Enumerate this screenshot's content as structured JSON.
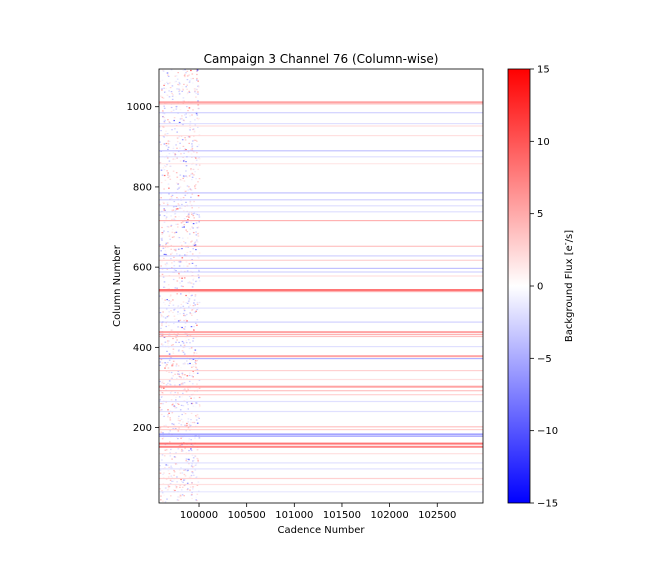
{
  "chart_data": {
    "type": "heatmap",
    "title": "Campaign 3 Channel 76 (Column-wise)",
    "xlabel": "Cadence Number",
    "ylabel": "Column Number",
    "xlim": [
      99580,
      102980
    ],
    "ylim": [
      12,
      1094
    ],
    "xticks": [
      {
        "value": 100000,
        "label": "100000"
      },
      {
        "value": 100500,
        "label": "100500"
      },
      {
        "value": 101000,
        "label": "101000"
      },
      {
        "value": 101500,
        "label": "101500"
      },
      {
        "value": 102000,
        "label": "102000"
      },
      {
        "value": 102500,
        "label": "102500"
      }
    ],
    "yticks": [
      {
        "value": 200,
        "label": "200"
      },
      {
        "value": 400,
        "label": "400"
      },
      {
        "value": 600,
        "label": "600"
      },
      {
        "value": 800,
        "label": "800"
      },
      {
        "value": 1000,
        "label": "1000"
      }
    ],
    "noisy_region_x": [
      99580,
      100000
    ],
    "colorbar": {
      "label": "Background Flux [e$^-$/s]",
      "min": -15,
      "max": 15,
      "colormap": "bwr",
      "ticks": [
        {
          "value": 15,
          "label": "15"
        },
        {
          "value": 10,
          "label": "10"
        },
        {
          "value": 5,
          "label": "5"
        },
        {
          "value": 0,
          "label": "0"
        },
        {
          "value": -5,
          "label": "−5"
        },
        {
          "value": -10,
          "label": "−10"
        },
        {
          "value": -15,
          "label": "−15"
        }
      ]
    },
    "bands": [
      {
        "column": 1011,
        "value": 6
      },
      {
        "column": 1007,
        "value": 4
      },
      {
        "column": 985,
        "value": -3
      },
      {
        "column": 958,
        "value": -2
      },
      {
        "column": 952,
        "value": 2
      },
      {
        "column": 928,
        "value": 2
      },
      {
        "column": 890,
        "value": -4
      },
      {
        "column": 875,
        "value": -2
      },
      {
        "column": 858,
        "value": 1.5
      },
      {
        "column": 785,
        "value": -4
      },
      {
        "column": 768,
        "value": -3
      },
      {
        "column": 753,
        "value": -2
      },
      {
        "column": 738,
        "value": -2
      },
      {
        "column": 716,
        "value": 5
      },
      {
        "column": 652,
        "value": 4
      },
      {
        "column": 628,
        "value": -3
      },
      {
        "column": 617,
        "value": 3
      },
      {
        "column": 597,
        "value": -4
      },
      {
        "column": 588,
        "value": -3
      },
      {
        "column": 578,
        "value": 2
      },
      {
        "column": 543,
        "value": 9
      },
      {
        "column": 539,
        "value": 5
      },
      {
        "column": 498,
        "value": -2
      },
      {
        "column": 463,
        "value": -3
      },
      {
        "column": 438,
        "value": 6
      },
      {
        "column": 432,
        "value": 5
      },
      {
        "column": 427,
        "value": 4
      },
      {
        "column": 402,
        "value": -2
      },
      {
        "column": 378,
        "value": 6
      },
      {
        "column": 372,
        "value": -5
      },
      {
        "column": 342,
        "value": 3
      },
      {
        "column": 320,
        "value": 2
      },
      {
        "column": 302,
        "value": 6
      },
      {
        "column": 292,
        "value": 4
      },
      {
        "column": 282,
        "value": 3
      },
      {
        "column": 265,
        "value": -2
      },
      {
        "column": 240,
        "value": -2
      },
      {
        "column": 202,
        "value": 4
      },
      {
        "column": 195,
        "value": 3
      },
      {
        "column": 183,
        "value": -6
      },
      {
        "column": 178,
        "value": -5
      },
      {
        "column": 160,
        "value": 9
      },
      {
        "column": 152,
        "value": 8
      },
      {
        "column": 135,
        "value": 2
      },
      {
        "column": 112,
        "value": -2
      },
      {
        "column": 97,
        "value": -2
      },
      {
        "column": 73,
        "value": 3
      },
      {
        "column": 58,
        "value": 2
      },
      {
        "column": 40,
        "value": -1.5
      }
    ]
  }
}
